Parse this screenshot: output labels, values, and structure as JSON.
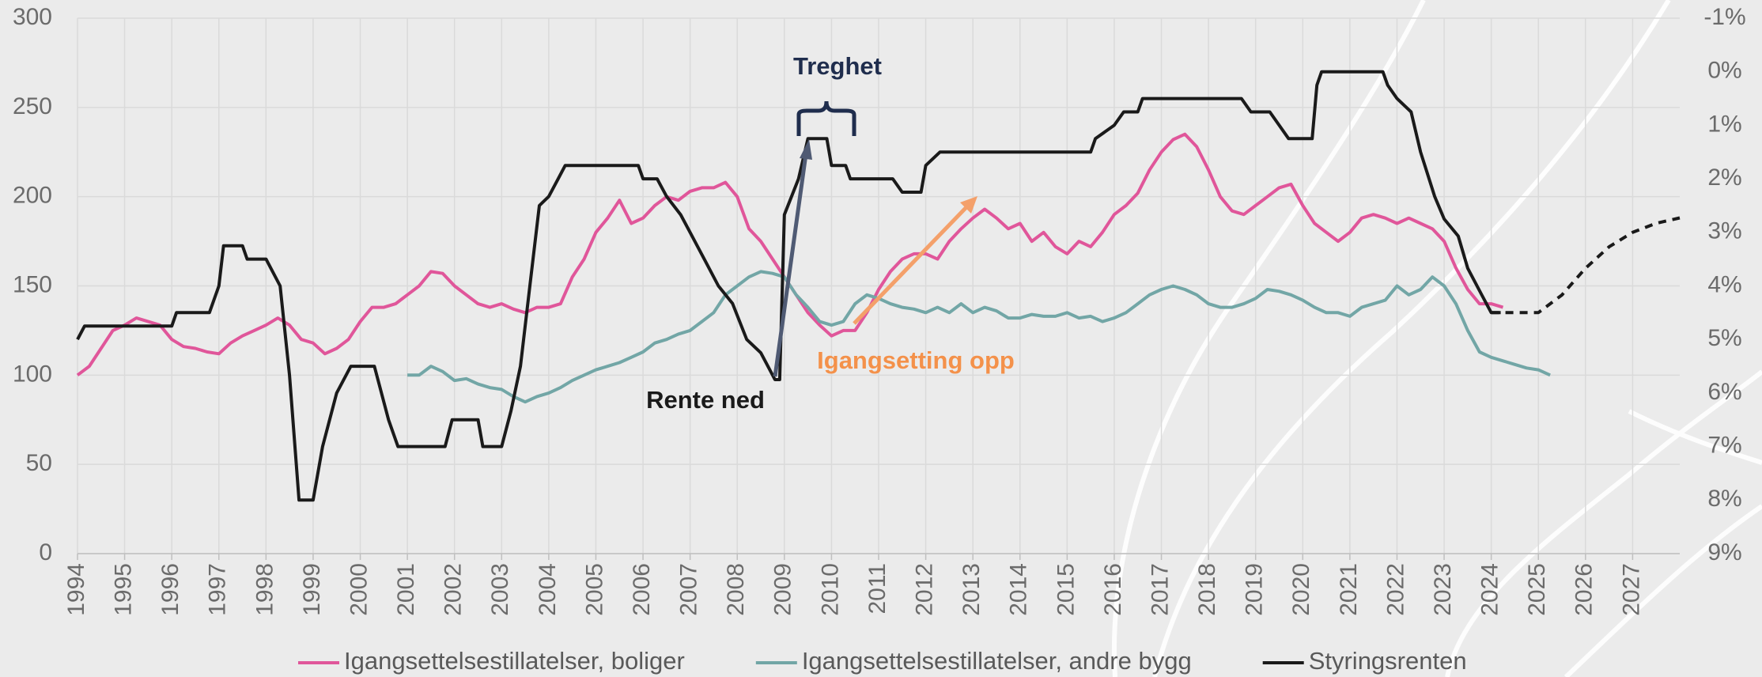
{
  "chart_data": {
    "type": "line",
    "xlim": [
      1994,
      2028
    ],
    "xticks": [
      1994,
      1995,
      1996,
      1997,
      1998,
      1999,
      2000,
      2001,
      2002,
      2003,
      2004,
      2005,
      2006,
      2007,
      2008,
      2009,
      2010,
      2011,
      2012,
      2013,
      2014,
      2015,
      2016,
      2017,
      2018,
      2019,
      2020,
      2021,
      2022,
      2023,
      2024,
      2025,
      2026,
      2027
    ],
    "ylim": [
      0,
      300
    ],
    "yticks": [
      0,
      50,
      100,
      150,
      200,
      250,
      300
    ],
    "y2lim": [
      9,
      -1
    ],
    "y2ticks": [
      {
        "value": -1,
        "label": "-1%"
      },
      {
        "value": 0,
        "label": "0%"
      },
      {
        "value": 1,
        "label": "1%"
      },
      {
        "value": 2,
        "label": "2%"
      },
      {
        "value": 3,
        "label": "3%"
      },
      {
        "value": 4,
        "label": "4%"
      },
      {
        "value": 5,
        "label": "5%"
      },
      {
        "value": 6,
        "label": "6%"
      },
      {
        "value": 7,
        "label": "7%"
      },
      {
        "value": 8,
        "label": "8%"
      },
      {
        "value": 9,
        "label": "9%"
      }
    ],
    "grid": true,
    "legend": "bottom",
    "series": [
      {
        "name": "Igangsettelsestillatelser, boliger",
        "color": "#e0569a",
        "x": [
          1994,
          1994.25,
          1994.5,
          1994.75,
          1995,
          1995.25,
          1995.5,
          1995.75,
          1996,
          1996.25,
          1996.5,
          1996.75,
          1997,
          1997.25,
          1997.5,
          1997.75,
          1998,
          1998.25,
          1998.5,
          1998.75,
          1999,
          1999.25,
          1999.5,
          1999.75,
          2000,
          2000.25,
          2000.5,
          2000.75,
          2001,
          2001.25,
          2001.5,
          2001.75,
          2002,
          2002.25,
          2002.5,
          2002.75,
          2003,
          2003.25,
          2003.5,
          2003.75,
          2004,
          2004.25,
          2004.5,
          2004.75,
          2005,
          2005.25,
          2005.5,
          2005.75,
          2006,
          2006.25,
          2006.5,
          2006.75,
          2007,
          2007.25,
          2007.5,
          2007.75,
          2008,
          2008.25,
          2008.5,
          2008.75,
          2009,
          2009.25,
          2009.5,
          2009.75,
          2010,
          2010.25,
          2010.5,
          2010.75,
          2011,
          2011.25,
          2011.5,
          2011.75,
          2012,
          2012.25,
          2012.5,
          2012.75,
          2013,
          2013.25,
          2013.5,
          2013.75,
          2014,
          2014.25,
          2014.5,
          2014.75,
          2015,
          2015.25,
          2015.5,
          2015.75,
          2016,
          2016.25,
          2016.5,
          2016.75,
          2017,
          2017.25,
          2017.5,
          2017.75,
          2018,
          2018.25,
          2018.5,
          2018.75,
          2019,
          2019.25,
          2019.5,
          2019.75,
          2020,
          2020.25,
          2020.5,
          2020.75,
          2021,
          2021.25,
          2021.5,
          2021.75,
          2022,
          2022.25,
          2022.5,
          2022.75,
          2023,
          2023.25,
          2023.5,
          2023.75,
          2024,
          2024.25
        ],
        "values": [
          100,
          105,
          115,
          125,
          128,
          132,
          130,
          128,
          120,
          116,
          115,
          113,
          112,
          118,
          122,
          125,
          128,
          132,
          128,
          120,
          118,
          112,
          115,
          120,
          130,
          138,
          138,
          140,
          145,
          150,
          158,
          157,
          150,
          145,
          140,
          138,
          140,
          137,
          135,
          138,
          138,
          140,
          155,
          165,
          180,
          188,
          198,
          185,
          188,
          195,
          200,
          198,
          203,
          205,
          205,
          208,
          200,
          182,
          175,
          165,
          155,
          145,
          135,
          128,
          122,
          125,
          125,
          135,
          148,
          158,
          165,
          168,
          168,
          165,
          175,
          182,
          188,
          193,
          188,
          182,
          185,
          175,
          180,
          172,
          168,
          175,
          172,
          180,
          190,
          195,
          202,
          215,
          225,
          232,
          235,
          228,
          215,
          200,
          192,
          190,
          195,
          200,
          205,
          207,
          195,
          185,
          180,
          175,
          180,
          188,
          190,
          188,
          185,
          188,
          185,
          182,
          175,
          160,
          148,
          140,
          140,
          138
        ]
      },
      {
        "name": "Igangsettelsestillatelser, andre bygg",
        "color": "#72a6a6",
        "x": [
          2001,
          2001.25,
          2001.5,
          2001.75,
          2002,
          2002.25,
          2002.5,
          2002.75,
          2003,
          2003.25,
          2003.5,
          2003.75,
          2004,
          2004.25,
          2004.5,
          2004.75,
          2005,
          2005.25,
          2005.5,
          2005.75,
          2006,
          2006.25,
          2006.5,
          2006.75,
          2007,
          2007.25,
          2007.5,
          2007.75,
          2008,
          2008.25,
          2008.5,
          2008.75,
          2009,
          2009.25,
          2009.5,
          2009.75,
          2010,
          2010.25,
          2010.5,
          2010.75,
          2011,
          2011.25,
          2011.5,
          2011.75,
          2012,
          2012.25,
          2012.5,
          2012.75,
          2013,
          2013.25,
          2013.5,
          2013.75,
          2014,
          2014.25,
          2014.5,
          2014.75,
          2015,
          2015.25,
          2015.5,
          2015.75,
          2016,
          2016.25,
          2016.5,
          2016.75,
          2017,
          2017.25,
          2017.5,
          2017.75,
          2018,
          2018.25,
          2018.5,
          2018.75,
          2019,
          2019.25,
          2019.5,
          2019.75,
          2020,
          2020.25,
          2020.5,
          2020.75,
          2021,
          2021.25,
          2021.5,
          2021.75,
          2022,
          2022.25,
          2022.5,
          2022.75,
          2023,
          2023.25,
          2023.5,
          2023.75,
          2024,
          2024.25,
          2024.5,
          2024.75,
          2025,
          2025.25
        ],
        "values": [
          100,
          100,
          105,
          102,
          97,
          98,
          95,
          93,
          92,
          88,
          85,
          88,
          90,
          93,
          97,
          100,
          103,
          105,
          107,
          110,
          113,
          118,
          120,
          123,
          125,
          130,
          135,
          145,
          150,
          155,
          158,
          157,
          155,
          145,
          138,
          130,
          128,
          130,
          140,
          145,
          143,
          140,
          138,
          137,
          135,
          138,
          135,
          140,
          135,
          138,
          136,
          132,
          132,
          134,
          133,
          133,
          135,
          132,
          133,
          130,
          132,
          135,
          140,
          145,
          148,
          150,
          148,
          145,
          140,
          138,
          138,
          140,
          143,
          148,
          147,
          145,
          142,
          138,
          135,
          135,
          133,
          138,
          140,
          142,
          150,
          145,
          148,
          155,
          150,
          140,
          125,
          113,
          110,
          108,
          106,
          104,
          103,
          100
        ]
      },
      {
        "name": "Styringsrenten",
        "color": "#1a1a1a",
        "axis": "y2",
        "x": [
          1994,
          1994.15,
          1996,
          1996.1,
          1996.8,
          1997,
          1997.1,
          1997.5,
          1997.6,
          1998,
          1998.3,
          1998.5,
          1998.7,
          1999,
          1999.2,
          1999.5,
          1999.8,
          2000.3,
          2000.6,
          2000.8,
          2001.8,
          2001.95,
          2002.5,
          2002.6,
          2003,
          2003.2,
          2003.4,
          2003.6,
          2003.8,
          2004,
          2004.2,
          2004.35,
          2005.9,
          2006,
          2006.3,
          2006.5,
          2006.8,
          2007,
          2007.3,
          2007.6,
          2007.9,
          2008.2,
          2008.5,
          2008.65,
          2008.8,
          2008.9,
          2009,
          2009.3,
          2009.5,
          2009.9,
          2010,
          2010.3,
          2010.4,
          2011.3,
          2011.5,
          2011.9,
          2012,
          2012.3,
          2015.5,
          2015.6,
          2016,
          2016.2,
          2016.5,
          2016.6,
          2018.7,
          2018.9,
          2019.3,
          2019.5,
          2019.7,
          2020.2,
          2020.3,
          2020.4,
          2021.7,
          2021.8,
          2022,
          2022.3,
          2022.5,
          2022.8,
          2023,
          2023.3,
          2023.5,
          2023.8,
          2024,
          2024.2
        ],
        "values": [
          5,
          4.75,
          4.75,
          4.5,
          4.5,
          4,
          3.25,
          3.25,
          3.5,
          3.5,
          4,
          5.67,
          8,
          8,
          7,
          6,
          5.5,
          5.5,
          6.5,
          7,
          7,
          6.5,
          6.5,
          7,
          7,
          6.33,
          5.5,
          4,
          2.5,
          2.33,
          2,
          1.75,
          1.75,
          2,
          2,
          2.33,
          2.67,
          3,
          3.5,
          4,
          4.33,
          5,
          5.25,
          5.5,
          5.75,
          5.75,
          2.67,
          2,
          1.25,
          1.25,
          1.75,
          1.75,
          2,
          2,
          2.25,
          2.25,
          1.75,
          1.5,
          1.5,
          1.25,
          1,
          0.75,
          0.75,
          0.5,
          0.5,
          0.75,
          0.75,
          1,
          1.25,
          1.25,
          0.25,
          0,
          0,
          0.25,
          0.5,
          0.75,
          1.5,
          2.33,
          2.75,
          3.07,
          3.67,
          4.17,
          4.5,
          4.5
        ]
      },
      {
        "color": "#1a1a1a",
        "axis": "y2",
        "dashed": true,
        "x": [
          2024,
          2025,
          2025.5,
          2026,
          2026.5,
          2027,
          2027.5,
          2028
        ],
        "values": [
          4.5,
          4.5,
          4.17,
          3.67,
          3.27,
          3,
          2.83,
          2.73
        ]
      }
    ],
    "annotations": [
      {
        "text": "Treghet",
        "color": "#1f2d4d"
      },
      {
        "text": "Rente ned",
        "color": "#1a1a1a"
      },
      {
        "text": "Igangsetting opp",
        "color": "#f4914a"
      }
    ]
  }
}
